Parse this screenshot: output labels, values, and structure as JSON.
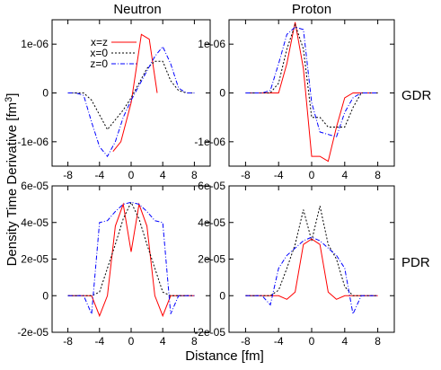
{
  "figure": {
    "column_titles": [
      "Neutron",
      "Proton"
    ],
    "row_labels": [
      "GDR",
      "PDR"
    ],
    "xlabel": "Distance [fm]",
    "ylabel": "Density Time Derivative [fm^3]"
  },
  "legend": [
    {
      "name": "x=z",
      "color": "#ff0000",
      "dash": "solid"
    },
    {
      "name": "x=0",
      "color": "#000000",
      "dash": "dotted"
    },
    {
      "name": "z=0",
      "color": "#0000ff",
      "dash": "dashdot"
    }
  ],
  "chart_data": [
    {
      "type": "line",
      "panel": "Neutron GDR",
      "xlim": [
        -10,
        10
      ],
      "ylim": [
        -1.5e-06,
        1.5e-06
      ],
      "xticks": [
        -8,
        -4,
        0,
        4,
        8
      ],
      "yticks": [
        -1e-06,
        0,
        1e-06
      ],
      "ytick_labels": [
        "-1e-06",
        "0",
        "1e-06"
      ],
      "series": [
        {
          "name": "x=z",
          "x": [
            -2.3,
            -1.3,
            0,
            1.3,
            2.3,
            3.3
          ],
          "y": [
            -1.2e-06,
            -1e-06,
            -2e-07,
            1.2e-06,
            1.1e-06,
            0
          ]
        },
        {
          "name": "x=0",
          "x": [
            -8,
            -7,
            -6,
            -5,
            -4,
            -3,
            -2,
            -1,
            0,
            1,
            2,
            3,
            4,
            5,
            6,
            7,
            8
          ],
          "y": [
            0,
            0,
            0,
            -1.5e-07,
            -4.5e-07,
            -7.5e-07,
            -5.5e-07,
            -3.5e-07,
            -1e-07,
            2e-07,
            5e-07,
            6.5e-07,
            6.5e-07,
            2.5e-07,
            5e-08,
            0,
            0
          ]
        },
        {
          "name": "z=0",
          "x": [
            -8,
            -7,
            -6,
            -5,
            -4,
            -3,
            -2,
            -1,
            0,
            1,
            2,
            3,
            4,
            5,
            6,
            7,
            8
          ],
          "y": [
            0,
            0,
            -5e-08,
            -6e-07,
            -1.1e-06,
            -1.3e-06,
            -1e-06,
            -5e-07,
            -1.5e-07,
            1.5e-07,
            4.5e-07,
            7.5e-07,
            9.5e-07,
            6e-07,
            1e-07,
            0,
            0
          ]
        }
      ]
    },
    {
      "type": "line",
      "panel": "Proton GDR",
      "xlim": [
        -10,
        10
      ],
      "ylim": [
        -1.5e-06,
        1.5e-06
      ],
      "xticks": [
        -8,
        -4,
        0,
        4,
        8
      ],
      "yticks": [
        -1e-06,
        0,
        1e-06
      ],
      "ytick_labels": [
        "-1e-06",
        "0",
        "1e-06"
      ],
      "series": [
        {
          "name": "x=z",
          "x": [
            -8,
            -7,
            -6,
            -5,
            -4,
            -3,
            -2,
            -1,
            0,
            1,
            2,
            3,
            4,
            5,
            6,
            7,
            8
          ],
          "y": [
            0,
            0,
            0,
            0,
            0,
            6e-07,
            1.45e-06,
            5e-07,
            -1.3e-06,
            -1.3e-06,
            -1.4e-06,
            -7e-07,
            -1e-07,
            0,
            0,
            0,
            0
          ]
        },
        {
          "name": "x=0",
          "x": [
            -8,
            -7,
            -6,
            -5,
            -4,
            -3,
            -2,
            -1,
            0,
            1,
            2,
            3,
            4,
            5,
            6,
            7,
            8
          ],
          "y": [
            0,
            0,
            0,
            0,
            2e-07,
            9e-07,
            1.4e-06,
            9e-07,
            -5e-07,
            -5e-07,
            -7e-07,
            -7e-07,
            -7e-07,
            -3e-07,
            0,
            0,
            0
          ]
        },
        {
          "name": "z=0",
          "x": [
            -8,
            -7,
            -6,
            -5,
            -4,
            -3,
            -2,
            -1,
            0,
            1,
            2,
            3,
            4,
            5,
            6,
            7,
            8
          ],
          "y": [
            0,
            0,
            0,
            5e-08,
            6e-07,
            1.2e-06,
            1.35e-06,
            1.3e-06,
            -2e-07,
            -8e-07,
            -8.5e-07,
            -9e-07,
            -4e-07,
            -1e-07,
            0,
            0,
            0
          ]
        }
      ]
    },
    {
      "type": "line",
      "panel": "Neutron PDR",
      "xlim": [
        -10,
        10
      ],
      "ylim": [
        -2e-05,
        6e-05
      ],
      "xticks": [
        -8,
        -4,
        0,
        4,
        8
      ],
      "yticks": [
        -2e-05,
        0,
        2e-05,
        4e-05,
        6e-05
      ],
      "ytick_labels": [
        "-2e-05",
        "0",
        "2e-05",
        "4e-05",
        "6e-05"
      ],
      "series": [
        {
          "name": "x=z",
          "x": [
            -8,
            -7,
            -6,
            -5,
            -4,
            -3,
            -2,
            -1,
            0,
            1,
            2,
            3,
            4,
            5,
            6,
            7,
            8
          ],
          "y": [
            0,
            0,
            0,
            0,
            -1.1e-05,
            0,
            3.8e-05,
            5e-05,
            2.4e-05,
            5e-05,
            3.8e-05,
            0,
            -1.1e-05,
            0,
            0,
            0,
            0
          ]
        },
        {
          "name": "x=0",
          "x": [
            -8,
            -7,
            -6,
            -5,
            -4,
            -3,
            -2,
            -1,
            0,
            1,
            2,
            3,
            4,
            5,
            6,
            7,
            8
          ],
          "y": [
            0,
            0,
            0,
            0,
            2e-06,
            1.5e-05,
            2.8e-05,
            4.2e-05,
            5.1e-05,
            4.2e-05,
            2.8e-05,
            1.5e-05,
            2e-06,
            0,
            0,
            0,
            0
          ]
        },
        {
          "name": "z=0",
          "x": [
            -8,
            -7,
            -6,
            -5,
            -4,
            -3,
            -2,
            -1,
            0,
            1,
            2,
            3,
            4,
            5,
            6,
            7,
            8
          ],
          "y": [
            0,
            0,
            0,
            -1e-05,
            4e-05,
            4.1e-05,
            4.6e-05,
            5e-05,
            5.1e-05,
            5e-05,
            4.6e-05,
            4.1e-05,
            4e-05,
            -1e-05,
            0,
            0,
            0
          ]
        }
      ]
    },
    {
      "type": "line",
      "panel": "Proton PDR",
      "xlim": [
        -10,
        10
      ],
      "ylim": [
        -2e-05,
        6e-05
      ],
      "xticks": [
        -8,
        -4,
        0,
        4,
        8
      ],
      "yticks": [
        -2e-05,
        0,
        2e-05,
        4e-05,
        6e-05
      ],
      "ytick_labels": [
        "-2e-05",
        "0",
        "2e-05",
        "4e-05",
        "6e-05"
      ],
      "series": [
        {
          "name": "x=z",
          "x": [
            -8,
            -7,
            -6,
            -5,
            -4,
            -3,
            -2,
            -1,
            0,
            1,
            2,
            3,
            4,
            5,
            6,
            7,
            8
          ],
          "y": [
            0,
            0,
            0,
            0,
            0,
            -2e-06,
            2e-06,
            2.8e-05,
            3.1e-05,
            2.8e-05,
            2e-06,
            -2e-06,
            0,
            0,
            0,
            0,
            0
          ]
        },
        {
          "name": "x=0",
          "x": [
            -8,
            -7,
            -6,
            -5,
            -4,
            -3,
            -2,
            -1,
            0,
            1,
            2,
            3,
            4,
            5,
            6,
            7,
            8
          ],
          "y": [
            0,
            0,
            0,
            0,
            3e-06,
            1.5e-05,
            2.8e-05,
            4.7e-05,
            3e-05,
            4.9e-05,
            2.8e-05,
            2e-05,
            5e-06,
            0,
            0,
            0,
            0
          ]
        },
        {
          "name": "z=0",
          "x": [
            -8,
            -7,
            -6,
            -5,
            -4,
            -3,
            -2,
            -1,
            0,
            1,
            2,
            3,
            4,
            5,
            6,
            7,
            8
          ],
          "y": [
            0,
            0,
            0,
            -5e-06,
            1.5e-05,
            2.2e-05,
            2.6e-05,
            3e-05,
            3.2e-05,
            3e-05,
            2.6e-05,
            2.2e-05,
            1.5e-05,
            -1e-05,
            0,
            0,
            0
          ]
        }
      ]
    }
  ]
}
